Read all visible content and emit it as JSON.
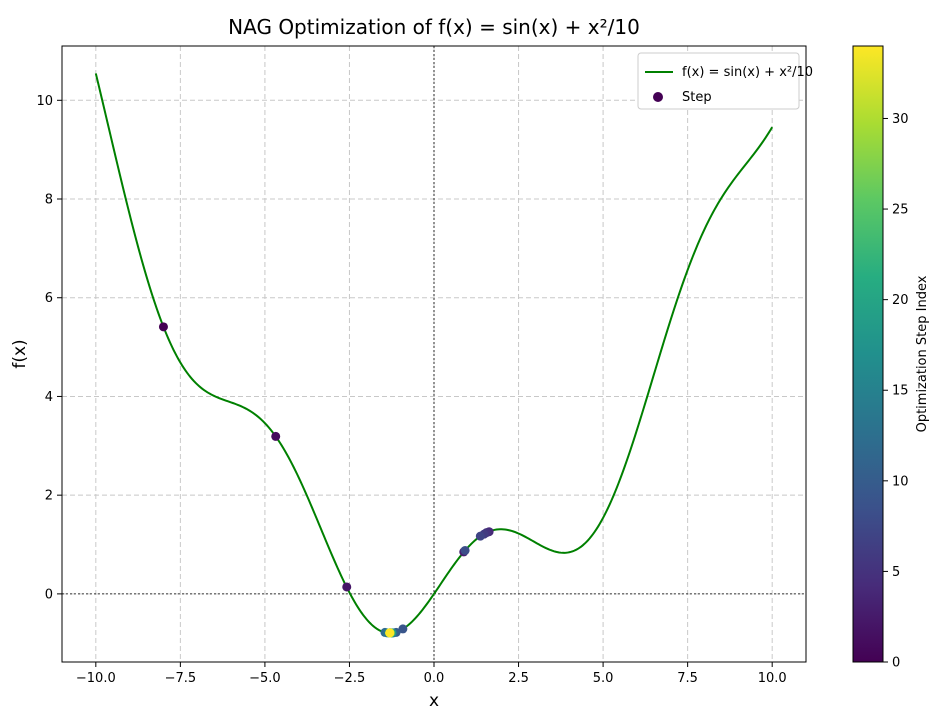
{
  "chart_data": {
    "type": "line",
    "title": "NAG Optimization of f(x) = sin(x) + x²/10",
    "xlabel": "x",
    "ylabel": "f(x)",
    "xlim": [
      -11,
      11
    ],
    "ylim": [
      -1.38,
      11.1
    ],
    "xticks": [
      -10.0,
      -7.5,
      -5.0,
      -2.5,
      0.0,
      2.5,
      5.0,
      7.5,
      10.0
    ],
    "xtick_labels": [
      "−10.0",
      "−7.5",
      "−5.0",
      "−2.5",
      "0.0",
      "2.5",
      "5.0",
      "7.5",
      "10.0"
    ],
    "yticks": [
      0,
      2,
      4,
      6,
      8,
      10
    ],
    "ytick_labels": [
      "0",
      "2",
      "4",
      "6",
      "8",
      "10"
    ],
    "grid": true,
    "legend_position": "top-right",
    "series": [
      {
        "name": "f(x) = sin(x) + x²/10",
        "kind": "line",
        "color": "#008000",
        "function": "sin(x) + x^2/10",
        "x_range": [
          -10,
          10
        ]
      },
      {
        "name": "Step",
        "kind": "scatter",
        "colormap": "viridis",
        "points": [
          {
            "x": -8.0,
            "y": 5.41,
            "step": 0
          },
          {
            "x": -4.68,
            "y": 3.19,
            "step": 1
          },
          {
            "x": -2.58,
            "y": 0.14,
            "step": 2
          },
          {
            "x": 0.88,
            "y": 0.85,
            "step": 3
          },
          {
            "x": 1.63,
            "y": 1.26,
            "step": 4
          },
          {
            "x": 1.55,
            "y": 1.24,
            "step": 5
          },
          {
            "x": 1.48,
            "y": 1.21,
            "step": 6
          },
          {
            "x": 1.37,
            "y": 1.17,
            "step": 7
          },
          {
            "x": 0.92,
            "y": 0.88,
            "step": 8
          },
          {
            "x": -0.92,
            "y": -0.71,
            "step": 9
          },
          {
            "x": -1.12,
            "y": -0.78,
            "step": 10
          },
          {
            "x": -1.2,
            "y": -0.79,
            "step": 11
          },
          {
            "x": -1.45,
            "y": -0.78,
            "step": 12
          },
          {
            "x": -1.39,
            "y": -0.79,
            "step": 13
          },
          {
            "x": -1.33,
            "y": -0.79,
            "step": 14
          },
          {
            "x": -1.28,
            "y": -0.79,
            "step": 15
          },
          {
            "x": -1.25,
            "y": -0.79,
            "step": 16
          },
          {
            "x": -1.24,
            "y": -0.79,
            "step": 17
          },
          {
            "x": -1.25,
            "y": -0.79,
            "step": 18
          },
          {
            "x": -1.27,
            "y": -0.79,
            "step": 19
          },
          {
            "x": -1.29,
            "y": -0.79,
            "step": 20
          },
          {
            "x": -1.31,
            "y": -0.79,
            "step": 21
          },
          {
            "x": -1.31,
            "y": -0.79,
            "step": 22
          },
          {
            "x": -1.31,
            "y": -0.79,
            "step": 23
          },
          {
            "x": -1.3,
            "y": -0.79,
            "step": 24
          },
          {
            "x": -1.3,
            "y": -0.79,
            "step": 25
          },
          {
            "x": -1.3,
            "y": -0.79,
            "step": 26
          },
          {
            "x": -1.3,
            "y": -0.79,
            "step": 27
          },
          {
            "x": -1.3,
            "y": -0.79,
            "step": 28
          },
          {
            "x": -1.3,
            "y": -0.79,
            "step": 29
          },
          {
            "x": -1.3,
            "y": -0.79,
            "step": 30
          },
          {
            "x": -1.3,
            "y": -0.79,
            "step": 31
          },
          {
            "x": -1.31,
            "y": -0.79,
            "step": 32
          },
          {
            "x": -1.31,
            "y": -0.79,
            "step": 33
          },
          {
            "x": -1.31,
            "y": -0.79,
            "step": 34
          }
        ]
      }
    ],
    "colorbar": {
      "label": "Optimization Step Index",
      "colormap": "viridis",
      "range": [
        0,
        34
      ],
      "ticks": [
        0,
        5,
        10,
        15,
        20,
        25,
        30
      ],
      "tick_labels": [
        "0",
        "5",
        "10",
        "15",
        "20",
        "25",
        "30"
      ]
    },
    "legend": [
      {
        "label": "f(x) = sin(x) + x²/10",
        "kind": "line",
        "color": "#008000"
      },
      {
        "label": "Step",
        "kind": "marker",
        "color": "#440154"
      }
    ]
  }
}
